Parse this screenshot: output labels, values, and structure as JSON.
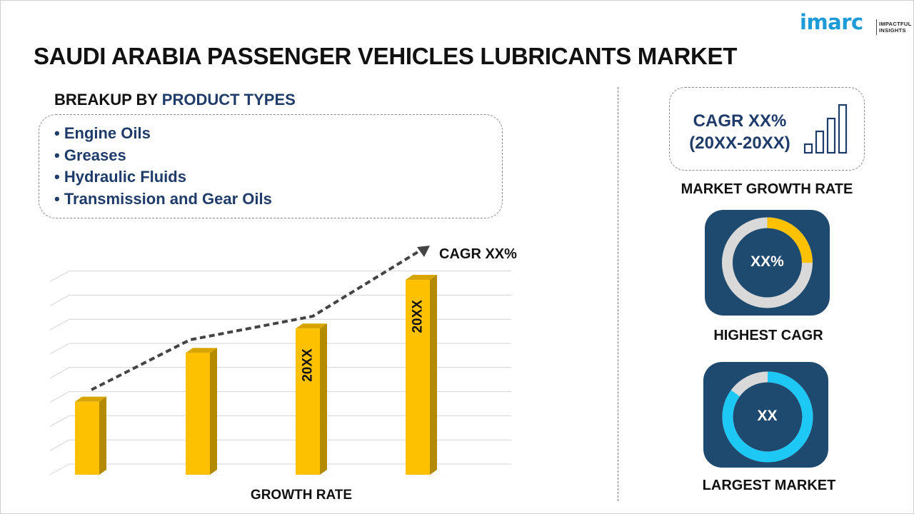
{
  "brand": {
    "logo_word": "imarc",
    "tagline_line1": "IMPACTFUL",
    "tagline_line2": "INSIGHTS",
    "color": "#1e9bd7"
  },
  "title": "SAUDI ARABIA PASSENGER VEHICLES LUBRICANTS MARKET",
  "breakup": {
    "heading_prefix": "BREAKUP BY",
    "heading_accent": "PRODUCT TYPES",
    "items": [
      "Engine Oils",
      "Greases",
      "Hydraulic Fluids",
      "Transmission and Gear Oils"
    ],
    "accent_color": "#1f3b69"
  },
  "chart_data": {
    "type": "bar",
    "xlabel": "GROWTH RATE",
    "ylabel": "",
    "categories": [
      "",
      "",
      "",
      ""
    ],
    "values": [
      3,
      5,
      6,
      8
    ],
    "ylim": [
      0,
      8.5
    ],
    "bar_labels": [
      "",
      "",
      "20XX",
      "20XX"
    ],
    "trend_label": "CAGR XX%",
    "grid": true,
    "bar_color": "#fdc102",
    "bar_side_color": "#b38a00",
    "bar_top_color": "#d8a500",
    "trend_color": "#444444"
  },
  "growth": {
    "cagr_line1": "CAGR XX%",
    "cagr_line2": "(20XX-20XX)",
    "label": "MARKET GROWTH RATE"
  },
  "highest": {
    "value": "XX%",
    "label": "HIGHEST CAGR",
    "highlight_fraction": 0.25,
    "highlight_color": "#fdc102",
    "ring_color": "#d9d9d9"
  },
  "largest": {
    "value": "XX",
    "label": "LARGEST MARKET",
    "highlight_fraction": 0.85,
    "highlight_color": "#1dc8f5",
    "ring_color": "#d9d9d9"
  },
  "colors": {
    "navy": "#1f3b69",
    "tile": "#1f4a70"
  }
}
